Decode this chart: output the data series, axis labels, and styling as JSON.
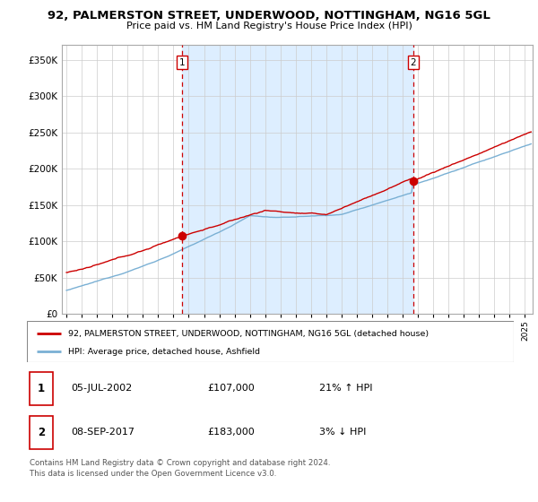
{
  "title": "92, PALMERSTON STREET, UNDERWOOD, NOTTINGHAM, NG16 5GL",
  "subtitle": "Price paid vs. HM Land Registry's House Price Index (HPI)",
  "ylim": [
    0,
    370000
  ],
  "xlim_start": 1994.7,
  "xlim_end": 2025.5,
  "sale1": {
    "date_num": 2002.54,
    "price": 107000,
    "label": "1"
  },
  "sale2": {
    "date_num": 2017.69,
    "price": 183000,
    "label": "2"
  },
  "line_color_property": "#cc0000",
  "line_color_hpi": "#7ab0d4",
  "shaded_color": "#ddeeff",
  "legend_label_property": "92, PALMERSTON STREET, UNDERWOOD, NOTTINGHAM, NG16 5GL (detached house)",
  "legend_label_hpi": "HPI: Average price, detached house, Ashfield",
  "footnote": "Contains HM Land Registry data © Crown copyright and database right 2024.\nThis data is licensed under the Open Government Licence v3.0.",
  "table_rows": [
    {
      "num": "1",
      "date": "05-JUL-2002",
      "price": "£107,000",
      "hpi": "21% ↑ HPI"
    },
    {
      "num": "2",
      "date": "08-SEP-2017",
      "price": "£183,000",
      "hpi": "3% ↓ HPI"
    }
  ],
  "background_color": "#ffffff",
  "grid_color": "#cccccc"
}
